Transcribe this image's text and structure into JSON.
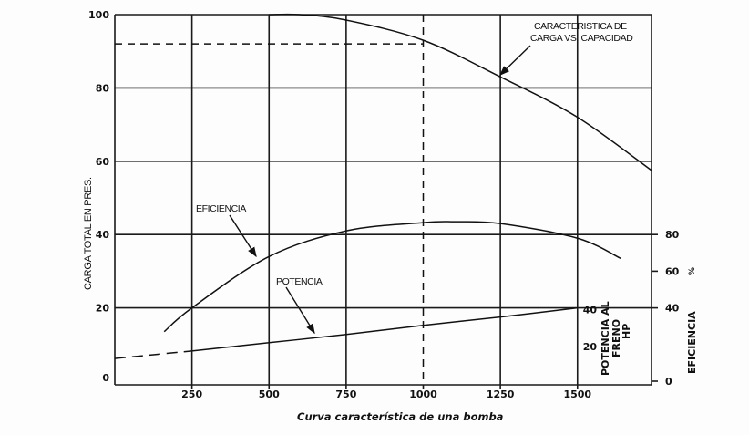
{
  "chart_data": {
    "type": "line",
    "caption": "Curva característica de una bomba",
    "x_ticks": [
      250,
      500,
      750,
      1000,
      1250,
      1500
    ],
    "x_tick_labels": [
      "250",
      "500",
      "750",
      "1000",
      "1250",
      "1500"
    ],
    "xlim": [
      0,
      1740
    ],
    "left_axis": {
      "label": "CARGA TOTAL EN PRES.",
      "ylim": [
        0,
        100
      ],
      "ticks": [
        0,
        20,
        40,
        60,
        80,
        100
      ],
      "tick_labels": [
        "0",
        "20",
        "40",
        "60",
        "80",
        "100"
      ]
    },
    "efficiency_axis": {
      "label": "EFICIENCIA",
      "unit": "%",
      "ylim": [
        0,
        200
      ],
      "ticks": [
        0,
        40,
        60,
        80
      ],
      "tick_labels": [
        "0",
        "40",
        "60",
        "80"
      ]
    },
    "power_axis": {
      "label_lines": [
        "POTENCIA AL",
        "FRENO",
        "HP"
      ],
      "ticks": [
        20,
        40
      ],
      "tick_labels": [
        "20",
        "40"
      ]
    },
    "grid": true,
    "series": [
      {
        "name": "CARACTERISTICA DE CARGA VS. CAPACIDAD",
        "axis": "left",
        "x": [
          500,
          600,
          750,
          1000,
          1250,
          1500,
          1740
        ],
        "y": [
          100,
          100,
          98.5,
          93,
          83,
          72,
          57.5
        ]
      },
      {
        "name": "EFICIENCIA",
        "axis": "efficiency",
        "x": [
          160,
          250,
          500,
          750,
          1000,
          1100,
          1250,
          1500,
          1640
        ],
        "y": [
          27,
          40,
          68,
          82,
          86.5,
          87,
          86,
          78,
          67
        ]
      },
      {
        "name": "POTENCIA",
        "axis": "power",
        "x": [
          0,
          250,
          500,
          750,
          1000,
          1250,
          1500
        ],
        "y": [
          12.4,
          16.5,
          21,
          25.5,
          30.5,
          35,
          40
        ],
        "dashed_until_x": 250
      }
    ],
    "reference_point": {
      "x": 1000,
      "y": 92,
      "style": "dashed"
    },
    "annotations": [
      {
        "lines": [
          "CARACTERISTICA DE",
          "CARGA VS. CAPACIDAD"
        ]
      },
      {
        "lines": [
          "EFICIENCIA"
        ]
      },
      {
        "lines": [
          "POTENCIA"
        ]
      }
    ]
  }
}
